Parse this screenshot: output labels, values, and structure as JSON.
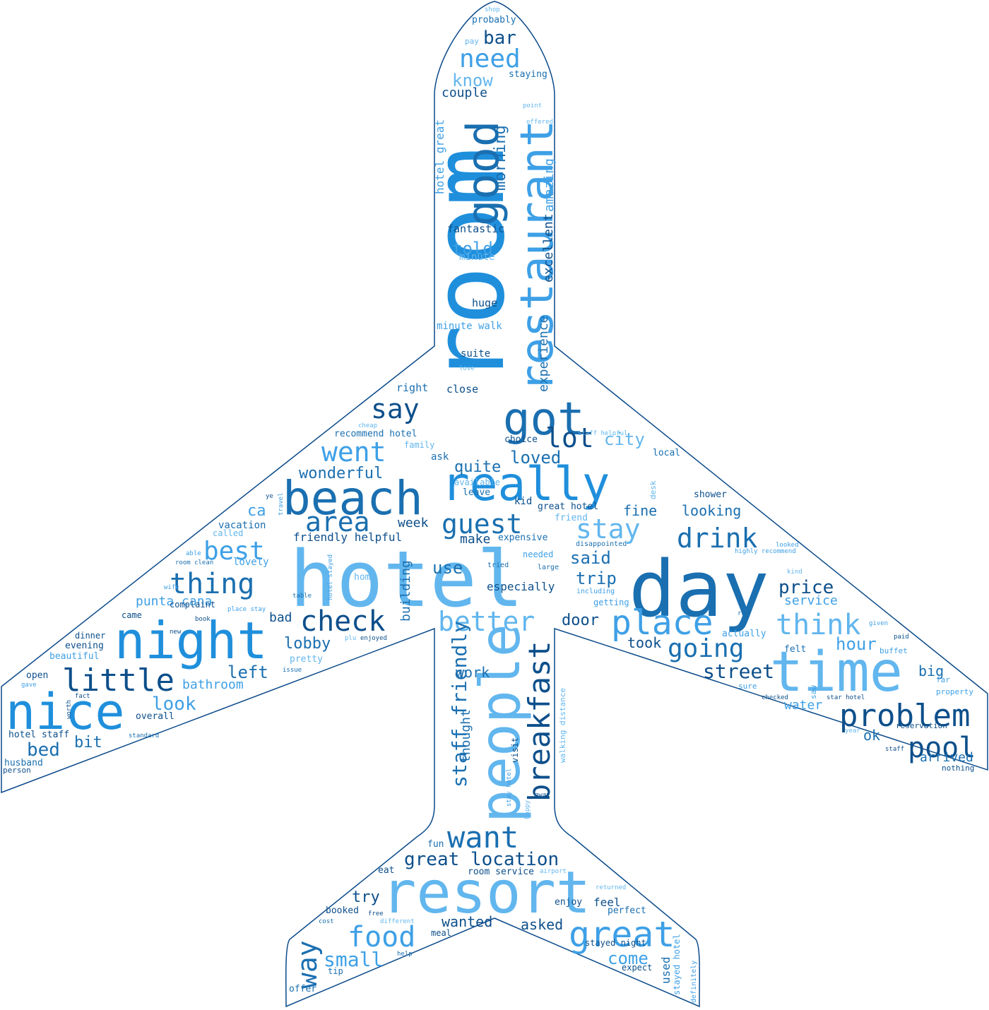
{
  "palette": [
    "#0d4f8b",
    "#1a6fb0",
    "#1f8fdc",
    "#3ea0e6",
    "#62b6ee",
    "#8fcbf2",
    "#b7ddf6"
  ],
  "outline_color": "#0a4a8a",
  "words": [
    {
      "text": "hotel",
      "c": "#62b6ee"
    },
    {
      "text": "room",
      "c": "#1f8fdc"
    },
    {
      "text": "day",
      "c": "#1a6fb0"
    },
    {
      "text": "time",
      "c": "#62b6ee"
    },
    {
      "text": "resort",
      "c": "#62b6ee"
    },
    {
      "text": "people",
      "c": "#62b6ee"
    },
    {
      "text": "night",
      "c": "#1f8fdc"
    },
    {
      "text": "beach",
      "c": "#1a6fb0"
    },
    {
      "text": "really",
      "c": "#1f8fdc"
    },
    {
      "text": "restaurant",
      "c": "#3ea0e6"
    },
    {
      "text": "good",
      "c": "#1a6fb0"
    },
    {
      "text": "great",
      "c": "#3ea0e6"
    },
    {
      "text": "nice",
      "c": "#1f8fdc"
    },
    {
      "text": "got",
      "c": "#1a6fb0"
    },
    {
      "text": "place",
      "c": "#3ea0e6"
    },
    {
      "text": "problem",
      "c": "#0d4f8b"
    },
    {
      "text": "breakfast",
      "c": "#0d4f8b"
    },
    {
      "text": "think",
      "c": "#62b6ee"
    },
    {
      "text": "check",
      "c": "#0d4f8b"
    },
    {
      "text": "better",
      "c": "#62b6ee"
    },
    {
      "text": "food",
      "c": "#3ea0e6"
    },
    {
      "text": "want",
      "c": "#1a6fb0"
    },
    {
      "text": "little",
      "c": "#0d4f8b"
    },
    {
      "text": "went",
      "c": "#3ea0e6"
    },
    {
      "text": "stay",
      "c": "#62b6ee"
    },
    {
      "text": "guest",
      "c": "#1a6fb0"
    },
    {
      "text": "area",
      "c": "#1a6fb0"
    },
    {
      "text": "drink",
      "c": "#1a6fb0"
    },
    {
      "text": "pool",
      "c": "#0d4f8b"
    },
    {
      "text": "going",
      "c": "#1a6fb0"
    },
    {
      "text": "thing",
      "c": "#1a6fb0"
    },
    {
      "text": "best",
      "c": "#3ea0e6"
    },
    {
      "text": "need",
      "c": "#3ea0e6"
    },
    {
      "text": "say",
      "c": "#0d4f8b"
    },
    {
      "text": "lot",
      "c": "#0d4f8b"
    },
    {
      "text": "way",
      "c": "#1a6fb0"
    },
    {
      "text": "small",
      "c": "#3ea0e6"
    },
    {
      "text": "staff friendly",
      "c": "#1a6fb0"
    },
    {
      "text": "great location",
      "c": "#0d4f8b"
    },
    {
      "text": "street",
      "c": "#0d4f8b"
    },
    {
      "text": "hour",
      "c": "#3ea0e6"
    },
    {
      "text": "price",
      "c": "#0d4f8b"
    },
    {
      "text": "bar",
      "c": "#0d4f8b"
    },
    {
      "text": "know",
      "c": "#62b6ee"
    },
    {
      "text": "told",
      "c": "#3ea0e6"
    },
    {
      "text": "morning",
      "c": "#1a6fb0"
    },
    {
      "text": "loved",
      "c": "#1a6fb0"
    },
    {
      "text": "city",
      "c": "#62b6ee"
    },
    {
      "text": "quite",
      "c": "#1a6fb0"
    },
    {
      "text": "wonderful",
      "c": "#1a6fb0"
    },
    {
      "text": "said",
      "c": "#1a6fb0"
    },
    {
      "text": "trip",
      "c": "#1a6fb0"
    },
    {
      "text": "use",
      "c": "#1a6fb0"
    },
    {
      "text": "door",
      "c": "#0d4f8b"
    },
    {
      "text": "took",
      "c": "#0d4f8b"
    },
    {
      "text": "look",
      "c": "#3ea0e6"
    },
    {
      "text": "left",
      "c": "#1a6fb0"
    },
    {
      "text": "bed",
      "c": "#1a6fb0"
    },
    {
      "text": "bit",
      "c": "#1a6fb0"
    },
    {
      "text": "lobby",
      "c": "#1a6fb0"
    },
    {
      "text": "work",
      "c": "#1a6fb0"
    },
    {
      "text": "wanted",
      "c": "#0d4f8b"
    },
    {
      "text": "asked",
      "c": "#0d4f8b"
    },
    {
      "text": "come",
      "c": "#3ea0e6"
    },
    {
      "text": "try",
      "c": "#0d4f8b"
    },
    {
      "text": "feel",
      "c": "#0d4f8b"
    },
    {
      "text": "big",
      "c": "#1a6fb0"
    },
    {
      "text": "ok",
      "c": "#1a6fb0"
    },
    {
      "text": "arrived",
      "c": "#1a6fb0"
    },
    {
      "text": "fine",
      "c": "#1a6fb0"
    },
    {
      "text": "looking",
      "c": "#1a6fb0"
    },
    {
      "text": "ca",
      "c": "#3ea0e6"
    },
    {
      "text": "week",
      "c": "#0d4f8b"
    },
    {
      "text": "make",
      "c": "#0d4f8b"
    },
    {
      "text": "bad",
      "c": "#0d4f8b"
    },
    {
      "text": "couple",
      "c": "#0d4f8b"
    },
    {
      "text": "amazing",
      "c": "#3ea0e6"
    },
    {
      "text": "excellent",
      "c": "#0d4f8b"
    },
    {
      "text": "experience",
      "c": "#1a6fb0"
    },
    {
      "text": "building",
      "c": "#1a6fb0"
    },
    {
      "text": "thought",
      "c": "#1a6fb0"
    },
    {
      "text": "service",
      "c": "#3ea0e6"
    },
    {
      "text": "water",
      "c": "#3ea0e6"
    },
    {
      "text": "bathroom",
      "c": "#3ea0e6"
    },
    {
      "text": "punta cana",
      "c": "#3ea0e6"
    },
    {
      "text": "especially",
      "c": "#0d4f8b"
    },
    {
      "text": "hotel great",
      "c": "#3ea0e6"
    },
    {
      "text": "close",
      "c": "#0d4f8b"
    },
    {
      "text": "right",
      "c": "#1a6fb0"
    },
    {
      "text": "fantastic",
      "c": "#0d4f8b"
    },
    {
      "text": "huge",
      "c": "#0d4f8b"
    },
    {
      "text": "suite",
      "c": "#0d4f8b"
    },
    {
      "text": "minute walk",
      "c": "#3ea0e6"
    },
    {
      "text": "minute",
      "c": "#62b6ee"
    },
    {
      "text": "staying",
      "c": "#1a6fb0"
    },
    {
      "text": "probably",
      "c": "#1a6fb0"
    },
    {
      "text": "pay",
      "c": "#62b6ee"
    },
    {
      "text": "shop",
      "c": "#62b6ee"
    },
    {
      "text": "point",
      "c": "#62b6ee"
    },
    {
      "text": "offered",
      "c": "#62b6ee"
    },
    {
      "text": "love",
      "c": "#62b6ee"
    },
    {
      "text": "choice",
      "c": "#0d4f8b"
    },
    {
      "text": "ask",
      "c": "#1a6fb0"
    },
    {
      "text": "family",
      "c": "#62b6ee"
    },
    {
      "text": "cheap",
      "c": "#62b6ee"
    },
    {
      "text": "recommend hotel",
      "c": "#1a6fb0"
    },
    {
      "text": "available",
      "c": "#62b6ee"
    },
    {
      "text": "leave",
      "c": "#1a6fb0"
    },
    {
      "text": "kid",
      "c": "#0d4f8b"
    },
    {
      "text": "friend",
      "c": "#62b6ee"
    },
    {
      "text": "great hotel",
      "c": "#0d4f8b"
    },
    {
      "text": "local",
      "c": "#1a6fb0"
    },
    {
      "text": "staff helpful",
      "c": "#62b6ee"
    },
    {
      "text": "desk",
      "c": "#62b6ee"
    },
    {
      "text": "shower",
      "c": "#0d4f8b"
    },
    {
      "text": "vacation",
      "c": "#1a6fb0"
    },
    {
      "text": "friendly helpful",
      "c": "#0d4f8b"
    },
    {
      "text": "lovely",
      "c": "#3ea0e6"
    },
    {
      "text": "expensive",
      "c": "#1a6fb0"
    },
    {
      "text": "needed",
      "c": "#3ea0e6"
    },
    {
      "text": "disappointed",
      "c": "#1a6fb0"
    },
    {
      "text": "tried",
      "c": "#1a6fb0"
    },
    {
      "text": "large",
      "c": "#1a6fb0"
    },
    {
      "text": "including",
      "c": "#3ea0e6"
    },
    {
      "text": "getting",
      "c": "#3ea0e6"
    },
    {
      "text": "highly recommend",
      "c": "#3ea0e6"
    },
    {
      "text": "looked",
      "c": "#3ea0e6"
    },
    {
      "text": "kind",
      "c": "#62b6ee"
    },
    {
      "text": "run",
      "c": "#1a6fb0"
    },
    {
      "text": "actually",
      "c": "#3ea0e6"
    },
    {
      "text": "given",
      "c": "#3ea0e6"
    },
    {
      "text": "paid",
      "c": "#0d4f8b"
    },
    {
      "text": "buffet",
      "c": "#3ea0e6"
    },
    {
      "text": "felt",
      "c": "#1a6fb0"
    },
    {
      "text": "saw",
      "c": "#3ea0e6"
    },
    {
      "text": "sure",
      "c": "#3ea0e6"
    },
    {
      "text": "far",
      "c": "#3ea0e6"
    },
    {
      "text": "property",
      "c": "#3ea0e6"
    },
    {
      "text": "checked",
      "c": "#0d4f8b"
    },
    {
      "text": "star hotel",
      "c": "#0d4f8b"
    },
    {
      "text": "reservation",
      "c": "#0d4f8b"
    },
    {
      "text": "year",
      "c": "#62b6ee"
    },
    {
      "text": "staff",
      "c": "#0d4f8b"
    },
    {
      "text": "nothing",
      "c": "#0d4f8b"
    },
    {
      "text": "home",
      "c": "#62b6ee"
    },
    {
      "text": "room clean",
      "c": "#1a6fb0"
    },
    {
      "text": "able",
      "c": "#3ea0e6"
    },
    {
      "text": "wife",
      "c": "#3ea0e6"
    },
    {
      "text": "table",
      "c": "#1a6fb0"
    },
    {
      "text": "hotel stayed",
      "c": "#3ea0e6"
    },
    {
      "text": "place stay",
      "c": "#3ea0e6"
    },
    {
      "text": "complaint",
      "c": "#0d4f8b"
    },
    {
      "text": "book",
      "c": "#0d4f8b"
    },
    {
      "text": "came",
      "c": "#0d4f8b"
    },
    {
      "text": "dinner",
      "c": "#0d4f8b"
    },
    {
      "text": "evening",
      "c": "#0d4f8b"
    },
    {
      "text": "beautiful",
      "c": "#3ea0e6"
    },
    {
      "text": "new",
      "c": "#0d4f8b"
    },
    {
      "text": "pretty",
      "c": "#62b6ee"
    },
    {
      "text": "issue",
      "c": "#1a6fb0"
    },
    {
      "text": "plu",
      "c": "#62b6ee"
    },
    {
      "text": "enjoyed",
      "c": "#0d4f8b"
    },
    {
      "text": "open",
      "c": "#0d4f8b"
    },
    {
      "text": "gave",
      "c": "#3ea0e6"
    },
    {
      "text": "fact",
      "c": "#0d4f8b"
    },
    {
      "text": "worth",
      "c": "#0d4f8b"
    },
    {
      "text": "overall",
      "c": "#0d4f8b"
    },
    {
      "text": "standard",
      "c": "#1a6fb0"
    },
    {
      "text": "hotel staff",
      "c": "#0d4f8b"
    },
    {
      "text": "husband",
      "c": "#1a6fb0"
    },
    {
      "text": "person",
      "c": "#0d4f8b"
    },
    {
      "text": "called",
      "c": "#62b6ee"
    },
    {
      "text": "ye",
      "c": "#0d4f8b"
    },
    {
      "text": "travel",
      "c": "#3ea0e6"
    },
    {
      "text": "stay hotel",
      "c": "#3ea0e6"
    },
    {
      "text": "walking distance",
      "c": "#62b6ee"
    },
    {
      "text": "visit",
      "c": "#0d4f8b"
    },
    {
      "text": "happy",
      "c": "#62b6ee"
    },
    {
      "text": "away",
      "c": "#0d4f8b"
    },
    {
      "text": "fun",
      "c": "#1a6fb0"
    },
    {
      "text": "eat",
      "c": "#0d4f8b"
    },
    {
      "text": "room service",
      "c": "#0d4f8b"
    },
    {
      "text": "airport",
      "c": "#62b6ee"
    },
    {
      "text": "returned",
      "c": "#62b6ee"
    },
    {
      "text": "enjoy",
      "c": "#0d4f8b"
    },
    {
      "text": "perfect",
      "c": "#1a6fb0"
    },
    {
      "text": "booked",
      "c": "#0d4f8b"
    },
    {
      "text": "free",
      "c": "#0d4f8b"
    },
    {
      "text": "cost",
      "c": "#1a6fb0"
    },
    {
      "text": "different",
      "c": "#62b6ee"
    },
    {
      "text": "meal",
      "c": "#0d4f8b"
    },
    {
      "text": "help",
      "c": "#1a6fb0"
    },
    {
      "text": "tip",
      "c": "#1a6fb0"
    },
    {
      "text": "offer",
      "c": "#1a6fb0"
    },
    {
      "text": "stayed night",
      "c": "#0d4f8b"
    },
    {
      "text": "expect",
      "c": "#0d4f8b"
    },
    {
      "text": "used",
      "c": "#1a6fb0"
    },
    {
      "text": "stayed hotel",
      "c": "#3ea0e6"
    },
    {
      "text": "definitely",
      "c": "#3ea0e6"
    }
  ]
}
